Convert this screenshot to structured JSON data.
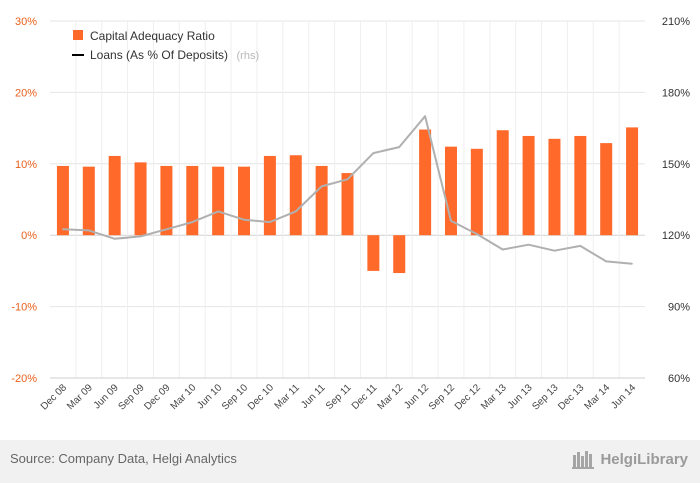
{
  "chart_data": {
    "type": "bar",
    "categories": [
      "Dec 08",
      "Mar 09",
      "Jun 09",
      "Sep 09",
      "Dec 09",
      "Mar 10",
      "Jun 10",
      "Sep 10",
      "Dec 10",
      "Mar 11",
      "Jun 11",
      "Sep 11",
      "Dec 11",
      "Mar 12",
      "Jun 12",
      "Sep 12",
      "Dec 12",
      "Mar 13",
      "Jun 13",
      "Sep 13",
      "Dec 13",
      "Mar 14",
      "Jun 14"
    ],
    "series": [
      {
        "name": "Capital Adequacy Ratio",
        "kind": "bar",
        "axis": "left",
        "color": "#ff6a2b",
        "values": [
          9.7,
          9.6,
          11.1,
          10.2,
          9.7,
          9.7,
          9.6,
          9.6,
          11.1,
          11.2,
          9.7,
          8.7,
          -5.0,
          -5.3,
          14.8,
          12.4,
          12.1,
          14.7,
          13.9,
          13.5,
          13.9,
          12.9,
          15.1
        ]
      },
      {
        "name": "Loans (As % Of Deposits)",
        "name_suffix": "(rhs)",
        "kind": "line",
        "axis": "right",
        "color": "#b0b0b0",
        "values": [
          122.5,
          122.0,
          118.5,
          119.5,
          122.5,
          125.5,
          130.0,
          126.5,
          125.5,
          130.0,
          140.5,
          143.5,
          154.5,
          157.0,
          170.0,
          126.0,
          120.5,
          114.0,
          116.0,
          113.5,
          115.5,
          109.0,
          108.0
        ]
      }
    ],
    "y_left": {
      "min": -20,
      "max": 30,
      "step": 10,
      "tick_labels": [
        "-20%",
        "-10%",
        "0%",
        "10%",
        "20%",
        "30%"
      ]
    },
    "y_right": {
      "min": 60,
      "max": 210,
      "step": 30,
      "tick_labels": [
        "60%",
        "90%",
        "120%",
        "150%",
        "180%",
        "210%"
      ]
    },
    "legend_position": "top-left",
    "legend_bar_color": "#ff6a2b",
    "legend_line_color": "#000000",
    "title": "",
    "xlabel": "",
    "ylabel": ""
  },
  "footer": {
    "source": "Source: Company Data, Helgi Analytics",
    "brand": "HelgiLibrary"
  }
}
